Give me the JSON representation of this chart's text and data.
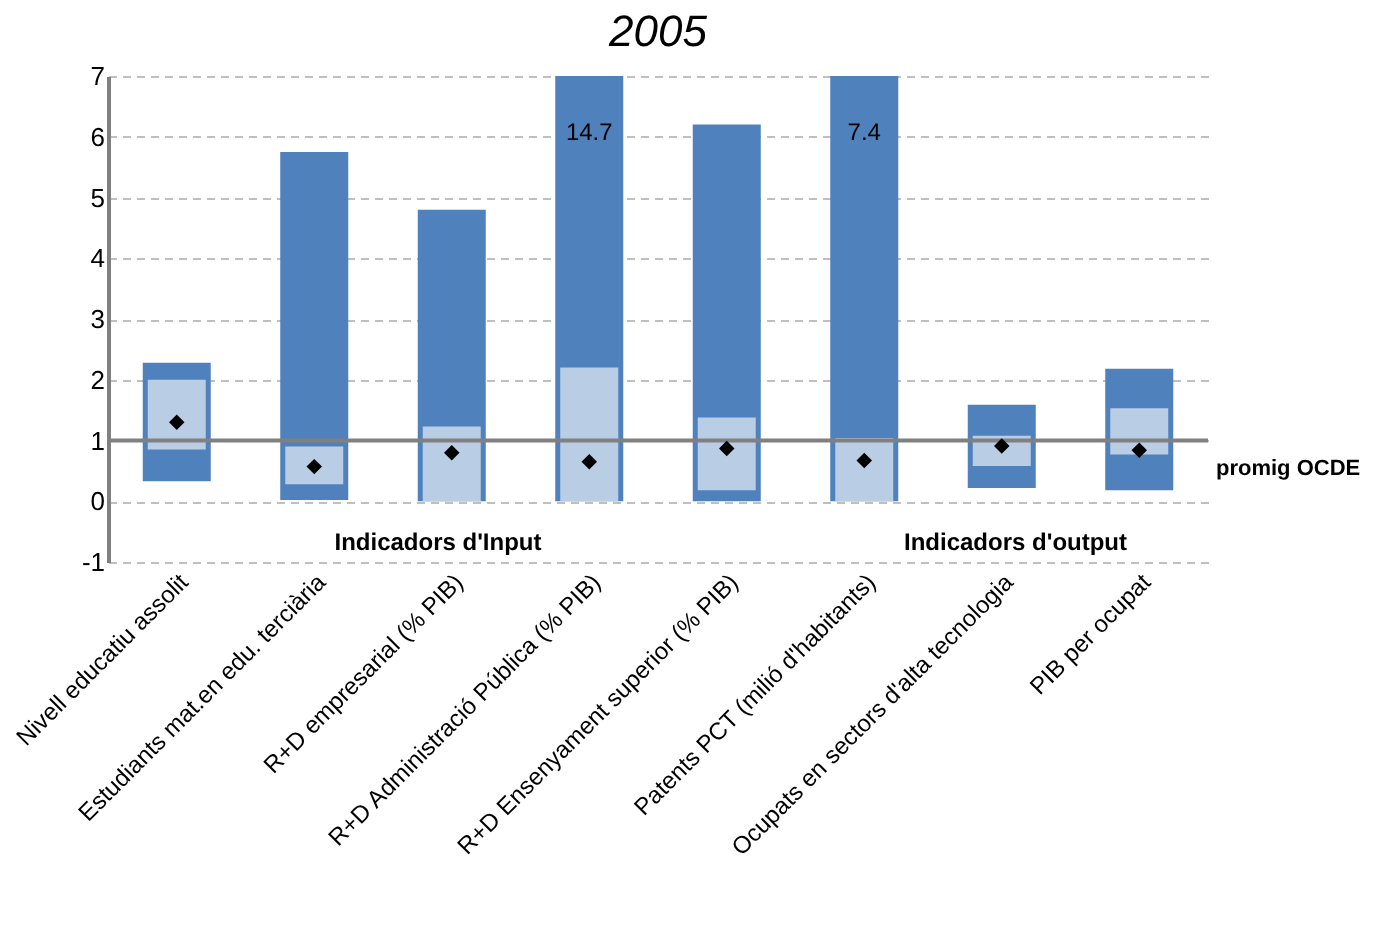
{
  "chart_data": {
    "type": "bar",
    "title": "2005",
    "categories": [
      "Nivell educatiu assolit",
      "Estudiants mat.en edu. terciària",
      "R+D empresarial (% PIB)",
      "R+D Administració Pública (% PIB)",
      "R+D Ensenyament superior (% PIB)",
      "Patents PCT (milió d'habitants)",
      "Ocupats en sectors d'alta tecnologia",
      "PIB per ocupat"
    ],
    "series": [
      {
        "color": "#4f81bd",
        "base": [
          0.33,
          0.02,
          0,
          0,
          0,
          0,
          0.22,
          0.18
        ],
        "values": [
          1.95,
          5.73,
          4.8,
          14.7,
          6.2,
          7.4,
          1.37,
          2.0
        ],
        "value_labels": [
          null,
          null,
          null,
          "14.7",
          null,
          "7.4",
          null,
          null
        ]
      },
      {
        "color": "#b9cde5",
        "base": [
          0.85,
          0.28,
          0,
          0,
          0.18,
          0,
          0.58,
          0.77
        ],
        "values": [
          1.15,
          0.62,
          1.23,
          2.2,
          1.2,
          1.04,
          0.5,
          0.76
        ]
      },
      {
        "type": "scatter",
        "color": "#000000",
        "marker": "diamond",
        "values": [
          1.3,
          0.57,
          0.8,
          0.65,
          0.87,
          0.67,
          0.91,
          0.84
        ]
      }
    ],
    "ylim": [
      -1,
      7
    ],
    "yticks": [
      -1,
      0,
      1,
      2,
      3,
      4,
      5,
      6,
      7
    ],
    "grid": "y",
    "ref_lines": [
      {
        "axis": "y",
        "value": 1,
        "label": "promig OCDE",
        "color": "#808080"
      }
    ],
    "annotations": [
      "Indicadors d'Input",
      "Indicadors d'output"
    ]
  }
}
